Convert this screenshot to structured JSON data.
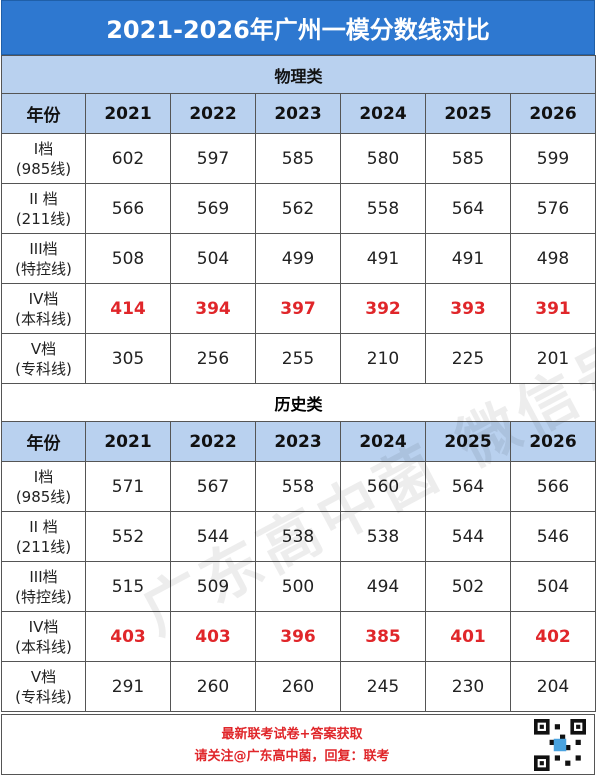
{
  "title": "2021-2026年广州一模分数线对比",
  "sections": [
    {
      "name": "物理类",
      "header": [
        "年份",
        "2021",
        "2022",
        "2023",
        "2024",
        "2025",
        "2026"
      ],
      "rows": [
        {
          "label1": "I档",
          "label2": "(985线)",
          "values": [
            "602",
            "597",
            "585",
            "580",
            "585",
            "599"
          ],
          "highlight": false
        },
        {
          "label1": "II 档",
          "label2": "(211线)",
          "values": [
            "566",
            "569",
            "562",
            "558",
            "564",
            "576"
          ],
          "highlight": false
        },
        {
          "label1": "III档",
          "label2": "(特控线)",
          "values": [
            "508",
            "504",
            "499",
            "491",
            "491",
            "498"
          ],
          "highlight": false
        },
        {
          "label1": "IV档",
          "label2": "(本科线)",
          "values": [
            "414",
            "394",
            "397",
            "392",
            "393",
            "391"
          ],
          "highlight": true
        },
        {
          "label1": "V档",
          "label2": "(专科线)",
          "values": [
            "305",
            "256",
            "255",
            "210",
            "225",
            "201"
          ],
          "highlight": false
        }
      ]
    },
    {
      "name": "历史类",
      "header": [
        "年份",
        "2021",
        "2022",
        "2023",
        "2024",
        "2025",
        "2026"
      ],
      "rows": [
        {
          "label1": "I档",
          "label2": "(985线)",
          "values": [
            "571",
            "567",
            "558",
            "560",
            "564",
            "566"
          ],
          "highlight": false
        },
        {
          "label1": "II 档",
          "label2": "(211线)",
          "values": [
            "552",
            "544",
            "538",
            "538",
            "544",
            "546"
          ],
          "highlight": false
        },
        {
          "label1": "III档",
          "label2": "(特控线)",
          "values": [
            "515",
            "509",
            "500",
            "494",
            "502",
            "504"
          ],
          "highlight": false
        },
        {
          "label1": "IV档",
          "label2": "(本科线)",
          "values": [
            "403",
            "403",
            "396",
            "385",
            "401",
            "402"
          ],
          "highlight": true
        },
        {
          "label1": "V档",
          "label2": "(专科线)",
          "values": [
            "291",
            "260",
            "260",
            "245",
            "230",
            "204"
          ],
          "highlight": false
        }
      ]
    }
  ],
  "footer": {
    "line1": "最新联考试卷+答案获取",
    "line2": "请关注@广东高中菌，回复：联考"
  },
  "watermark": "广东高中菌 微信号：gdgzstu",
  "colors": {
    "title_bg": "#2e78d0",
    "header_bg": "#b9d1ef",
    "highlight": "#e0262a"
  }
}
